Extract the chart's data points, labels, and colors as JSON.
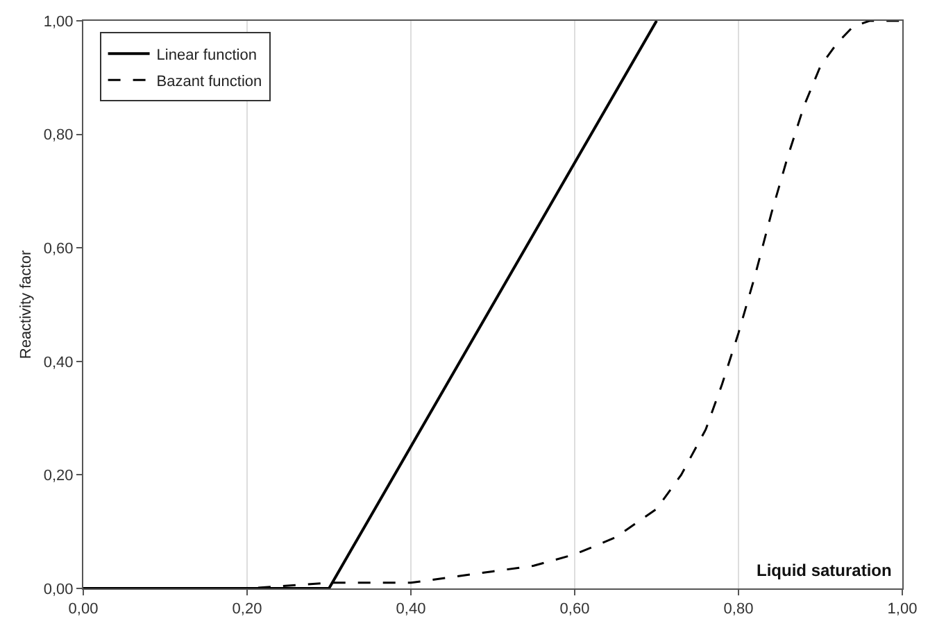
{
  "chart_data": {
    "type": "line",
    "xlabel": "Liquid saturation",
    "ylabel": "Reactivity factor",
    "xlim": [
      0,
      1
    ],
    "ylim": [
      0,
      1
    ],
    "xticks": [
      {
        "value": 0,
        "label": "0,00"
      },
      {
        "value": 0.2,
        "label": "0,20"
      },
      {
        "value": 0.4,
        "label": "0,40"
      },
      {
        "value": 0.6,
        "label": "0,60"
      },
      {
        "value": 0.8,
        "label": "0,80"
      },
      {
        "value": 1,
        "label": "1,00"
      }
    ],
    "yticks": [
      {
        "value": 0,
        "label": "0,00"
      },
      {
        "value": 0.2,
        "label": "0,20"
      },
      {
        "value": 0.4,
        "label": "0,40"
      },
      {
        "value": 0.6,
        "label": "0,60"
      },
      {
        "value": 0.8,
        "label": "0,80"
      },
      {
        "value": 1,
        "label": "1,00"
      }
    ],
    "grid": "x",
    "legend": "top left",
    "marker": "none",
    "series": [
      {
        "name": "Linear function",
        "color": "#000000",
        "line_style": "solid",
        "x": [
          0,
          0.3,
          0.7
        ],
        "values": [
          0,
          0,
          1
        ]
      },
      {
        "name": "Bazant function",
        "color": "#000000",
        "line_style": "dashed",
        "x": [
          0,
          0.1,
          0.2,
          0.3,
          0.4,
          0.5,
          0.55,
          0.6,
          0.65,
          0.7,
          0.73,
          0.76,
          0.78,
          0.8,
          0.82,
          0.84,
          0.86,
          0.88,
          0.9,
          0.92,
          0.94,
          0.96,
          1
        ],
        "values": [
          0,
          0,
          0,
          0.01,
          0.01,
          0.03,
          0.04,
          0.06,
          0.09,
          0.14,
          0.2,
          0.28,
          0.36,
          0.45,
          0.55,
          0.66,
          0.76,
          0.85,
          0.92,
          0.96,
          0.99,
          1,
          1
        ]
      }
    ]
  }
}
